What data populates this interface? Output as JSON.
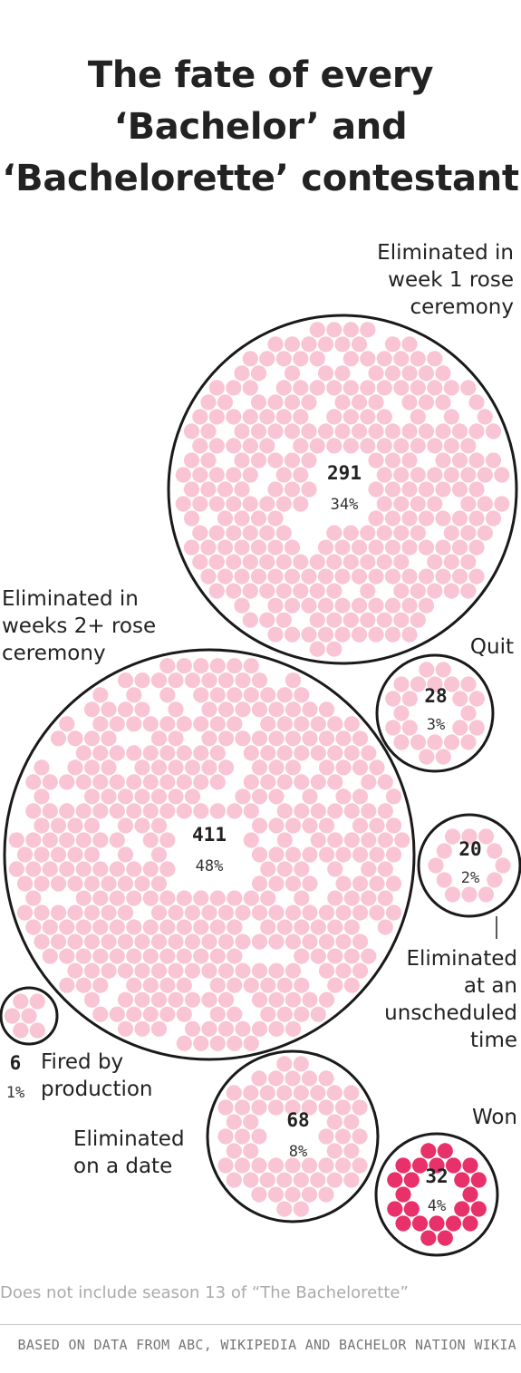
{
  "title": [
    "The fate of every",
    "‘Bachelor’ and",
    "‘Bachelorette’ contestant"
  ],
  "chart_data": {
    "type": "bubble",
    "groups": [
      {
        "id": "week1",
        "label": [
          "Eliminated in",
          "week 1 rose",
          "ceremony"
        ],
        "count": 291,
        "percent": "34%"
      },
      {
        "id": "weeks2",
        "label": [
          "Eliminated in",
          "weeks 2+ rose",
          "ceremony"
        ],
        "count": 411,
        "percent": "48%"
      },
      {
        "id": "quit",
        "label": [
          "Quit"
        ],
        "count": 28,
        "percent": "3%"
      },
      {
        "id": "unscheduled",
        "label": [
          "Eliminated",
          "at an",
          "unscheduled",
          "time"
        ],
        "count": 20,
        "percent": "2%"
      },
      {
        "id": "fired",
        "label": [
          "Fired by",
          "production"
        ],
        "count": 6,
        "percent": "1%"
      },
      {
        "id": "date",
        "label": [
          "Eliminated",
          "on a date"
        ],
        "count": 68,
        "percent": "8%"
      },
      {
        "id": "won",
        "label": [
          "Won"
        ],
        "count": 32,
        "percent": "4%"
      }
    ],
    "colors": {
      "dot": "#f9c4d4",
      "dot_won": "#e8306a",
      "outline": "#1a1a1a"
    }
  },
  "note": "Does not include season 13 of “The Bachelorette”",
  "source": "BASED ON DATA FROM ABC, WIKIPEDIA AND BACHELOR NATION WIKIA"
}
